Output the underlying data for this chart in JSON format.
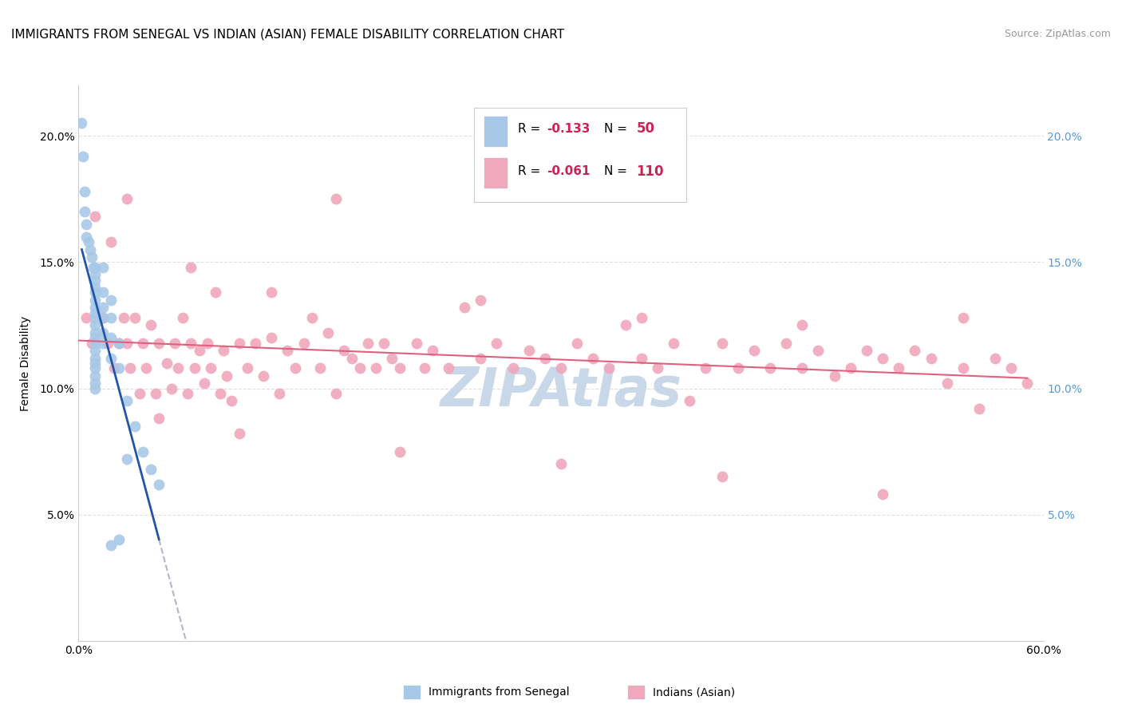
{
  "title": "IMMIGRANTS FROM SENEGAL VS INDIAN (ASIAN) FEMALE DISABILITY CORRELATION CHART",
  "source": "Source: ZipAtlas.com",
  "ylabel": "Female Disability",
  "xlim": [
    0.0,
    0.6
  ],
  "ylim": [
    0.0,
    0.22
  ],
  "yticks": [
    0.05,
    0.1,
    0.15,
    0.2
  ],
  "ytick_labels": [
    "5.0%",
    "10.0%",
    "15.0%",
    "20.0%"
  ],
  "xticks": [
    0.0,
    0.1,
    0.2,
    0.3,
    0.4,
    0.5,
    0.6
  ],
  "legend_r1": "-0.133",
  "legend_n1": "50",
  "legend_r2": "-0.061",
  "legend_n2": "110",
  "senegal_color": "#a8c8e8",
  "indian_color": "#f0a8bc",
  "senegal_line_color": "#2255aa",
  "indian_line_color": "#e06080",
  "dashed_line_color": "#b0b8c8",
  "watermark_color": "#c8d8e8",
  "background_color": "#ffffff",
  "right_tick_color": "#5599dd",
  "legend_border_color": "#cccccc",
  "senegal_x": [
    0.002,
    0.003,
    0.004,
    0.004,
    0.005,
    0.005,
    0.006,
    0.007,
    0.008,
    0.009,
    0.01,
    0.01,
    0.01,
    0.01,
    0.01,
    0.01,
    0.01,
    0.01,
    0.01,
    0.01,
    0.01,
    0.01,
    0.01,
    0.01,
    0.01,
    0.01,
    0.01,
    0.01,
    0.01,
    0.01,
    0.015,
    0.015,
    0.015,
    0.015,
    0.015,
    0.015,
    0.02,
    0.02,
    0.02,
    0.02,
    0.025,
    0.025,
    0.03,
    0.035,
    0.04,
    0.045,
    0.05,
    0.02,
    0.025,
    0.03
  ],
  "senegal_y": [
    0.205,
    0.192,
    0.178,
    0.17,
    0.165,
    0.16,
    0.158,
    0.155,
    0.152,
    0.148,
    0.148,
    0.145,
    0.143,
    0.14,
    0.138,
    0.135,
    0.132,
    0.13,
    0.128,
    0.125,
    0.122,
    0.12,
    0.118,
    0.115,
    0.112,
    0.11,
    0.108,
    0.105,
    0.102,
    0.1,
    0.148,
    0.138,
    0.132,
    0.128,
    0.122,
    0.118,
    0.135,
    0.128,
    0.12,
    0.112,
    0.118,
    0.108,
    0.095,
    0.085,
    0.075,
    0.068,
    0.062,
    0.038,
    0.04,
    0.072
  ],
  "indian_x": [
    0.005,
    0.008,
    0.01,
    0.015,
    0.018,
    0.02,
    0.022,
    0.025,
    0.028,
    0.03,
    0.032,
    0.035,
    0.038,
    0.04,
    0.042,
    0.045,
    0.048,
    0.05,
    0.055,
    0.058,
    0.06,
    0.062,
    0.065,
    0.068,
    0.07,
    0.072,
    0.075,
    0.078,
    0.08,
    0.082,
    0.085,
    0.088,
    0.09,
    0.092,
    0.095,
    0.1,
    0.105,
    0.11,
    0.115,
    0.12,
    0.125,
    0.13,
    0.135,
    0.14,
    0.145,
    0.15,
    0.155,
    0.16,
    0.165,
    0.17,
    0.175,
    0.18,
    0.185,
    0.19,
    0.195,
    0.2,
    0.21,
    0.215,
    0.22,
    0.23,
    0.24,
    0.25,
    0.26,
    0.27,
    0.28,
    0.29,
    0.3,
    0.31,
    0.32,
    0.33,
    0.34,
    0.35,
    0.36,
    0.37,
    0.38,
    0.39,
    0.4,
    0.41,
    0.42,
    0.43,
    0.44,
    0.45,
    0.46,
    0.47,
    0.48,
    0.49,
    0.5,
    0.51,
    0.52,
    0.53,
    0.54,
    0.55,
    0.56,
    0.57,
    0.58,
    0.59,
    0.05,
    0.1,
    0.2,
    0.3,
    0.4,
    0.5,
    0.03,
    0.07,
    0.12,
    0.16,
    0.25,
    0.35,
    0.45,
    0.55
  ],
  "indian_y": [
    0.128,
    0.118,
    0.168,
    0.128,
    0.118,
    0.158,
    0.108,
    0.118,
    0.128,
    0.118,
    0.108,
    0.128,
    0.098,
    0.118,
    0.108,
    0.125,
    0.098,
    0.118,
    0.11,
    0.1,
    0.118,
    0.108,
    0.128,
    0.098,
    0.118,
    0.108,
    0.115,
    0.102,
    0.118,
    0.108,
    0.138,
    0.098,
    0.115,
    0.105,
    0.095,
    0.118,
    0.108,
    0.118,
    0.105,
    0.12,
    0.098,
    0.115,
    0.108,
    0.118,
    0.128,
    0.108,
    0.122,
    0.098,
    0.115,
    0.112,
    0.108,
    0.118,
    0.108,
    0.118,
    0.112,
    0.108,
    0.118,
    0.108,
    0.115,
    0.108,
    0.132,
    0.112,
    0.118,
    0.108,
    0.115,
    0.112,
    0.108,
    0.118,
    0.112,
    0.108,
    0.125,
    0.112,
    0.108,
    0.118,
    0.095,
    0.108,
    0.118,
    0.108,
    0.115,
    0.108,
    0.118,
    0.108,
    0.115,
    0.105,
    0.108,
    0.115,
    0.112,
    0.108,
    0.115,
    0.112,
    0.102,
    0.108,
    0.092,
    0.112,
    0.108,
    0.102,
    0.088,
    0.082,
    0.075,
    0.07,
    0.065,
    0.058,
    0.175,
    0.148,
    0.138,
    0.175,
    0.135,
    0.128,
    0.125,
    0.128
  ]
}
